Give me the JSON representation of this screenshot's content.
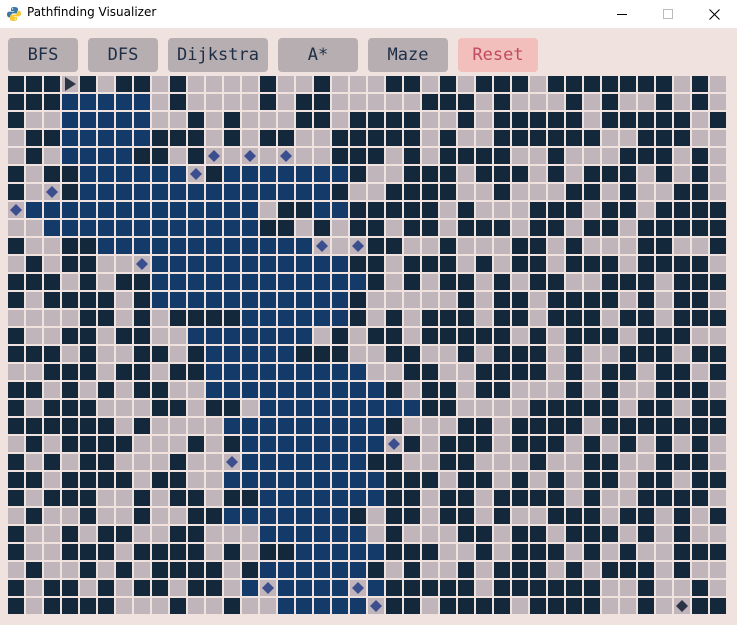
{
  "window": {
    "title": "Pathfinding Visualizer",
    "controls": {
      "minimize": "minimize-icon",
      "maximize": "maximize-icon",
      "close": "close-icon"
    }
  },
  "toolbar": {
    "buttons": [
      {
        "id": "bfs",
        "label": "BFS"
      },
      {
        "id": "dfs",
        "label": "DFS"
      },
      {
        "id": "dijkstra",
        "label": "Dijkstra"
      },
      {
        "id": "astar",
        "label": "A*"
      },
      {
        "id": "maze",
        "label": "Maze"
      },
      {
        "id": "reset",
        "label": "Reset"
      }
    ]
  },
  "colors": {
    "background": "#f0e2de",
    "wall": "#13283b",
    "open": "#c0b5bb",
    "visited": "#143a6a",
    "frontier": "#3b4f8e",
    "start": "#2b3445",
    "button": "#b7aeb1",
    "button_text": "#1d2e46",
    "reset_button": "#f2bfbd",
    "reset_text": "#c04a62"
  },
  "grid": {
    "cols": 40,
    "rows": 30,
    "legend": {
      "#": "wall",
      ".": "open",
      "v": "visited",
      "o": "frontier"
    },
    "start": {
      "col": 3,
      "row": 0
    },
    "goal": {
      "col": 37,
      "row": 29
    },
    "cells": [
      "#####.##.#....#..#...##.#.###.#######.#.",
      "###vvvvv.#....#.##.....###.#...#.#..#.#.",
      "#..vvvvv..#.#...##.####..#.#####.#####.#",
      ".##vvvvv###.#.##..#####.#..######..###..",
      ".#.vvvv##.#o.o.o..###.#.####..#...###.#.",
      "#.##vvvvvvo#vvvvvvv#..###.###.#.###.#.#.",
      "#.o#vvvvvvvvvvvvvv#..####..#...##.#..##.",
      "ovvvvvvvvvvvvv.##vv#####.#...###.##.####",
      "..vvvvvvvvvvvv##.#.##.##.###.##.##.#####",
      "#..##vvvvvvvvvvvvo.o##..#...##.#...##..#",
      ".#.##..ovvvvvvvvvvv##.###.#.##.###.####.",
      "###.#.##vvvvvvvvvvvv#.#.##.#.##..###.###",
      "#.####.#vvvvvvvvvvv#.....#.##.####.#.##.",
      "....##.#.####vvvvvv#.#.###.##.###.##.###",
      "#..##.##..vvvvvvv.#.##.#####.#.###.###..",
      "###.#..##.#vvvvv###..##..#.###.#..###.##",
      "..###.##.##vvvvvvvvv..##..####.#.##.##.#",
      "##.#.#.##..vvvvvvvvvv#.##.##...#.#..###.",
      "#.###...##.##.vvvvvvvvv##....#####.##.##",
      "######.#....vvvvvvvvv#...##.####.#######",
      ".#.####...#.#vvvvvvvvo#.###.###.#.#.#.#.",
      "#.#.##...#..ovvvvvvv##..##...#..##..###.",
      "##.####.##..vvvvvvvvv###.##.#.#.##.##.##",
      "#.###..#.##.##vvvvvvv##.##.####.#..####.",
      ".#..#..#..##vvvvvvv#.##.##.#..###.##.#.#",
      "#..#.##..##...vvvvvv.#...##.##.###.#.#..",
      "#..###.####.#.##vvvvv###..#.###.#.#..###",
      ".#..#.#.####.#vvvvvv#.#..#.###.#.###.#..",
      "#.##.#.##.##.vovvvvov#####.######..#..#.",
      "#.####...#..#..vvvvvo##.####.####..#..##"
    ]
  }
}
